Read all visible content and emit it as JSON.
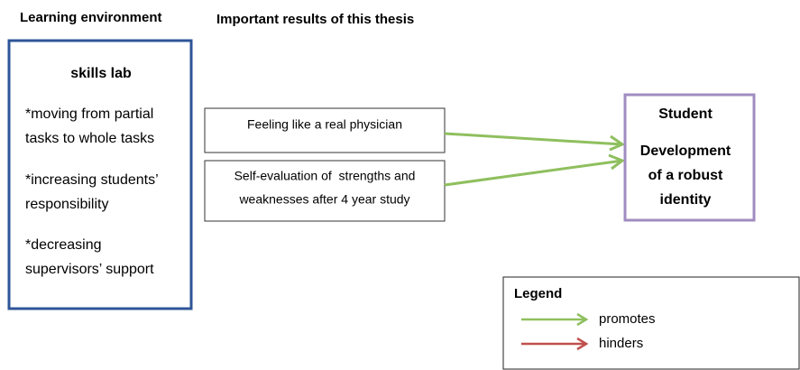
{
  "headers": {
    "learning": "Learning environment",
    "results": "Important results of this thesis"
  },
  "environment": {
    "title": "skills lab",
    "items": [
      [
        "*moving from partial",
        "tasks to whole tasks"
      ],
      [
        "*increasing students’",
        "responsibility"
      ],
      [
        "*decreasing",
        "supervisors’ support"
      ]
    ]
  },
  "results": [
    [
      "Feeling like a real physician"
    ],
    [
      "Self-evaluation of  strengths and",
      "weaknesses after 4 year study"
    ]
  ],
  "student": {
    "title": "Student",
    "lines": [
      "Development",
      "of a robust",
      "identity"
    ]
  },
  "legend": {
    "title": "Legend",
    "items": [
      "promotes",
      "hinders"
    ]
  }
}
